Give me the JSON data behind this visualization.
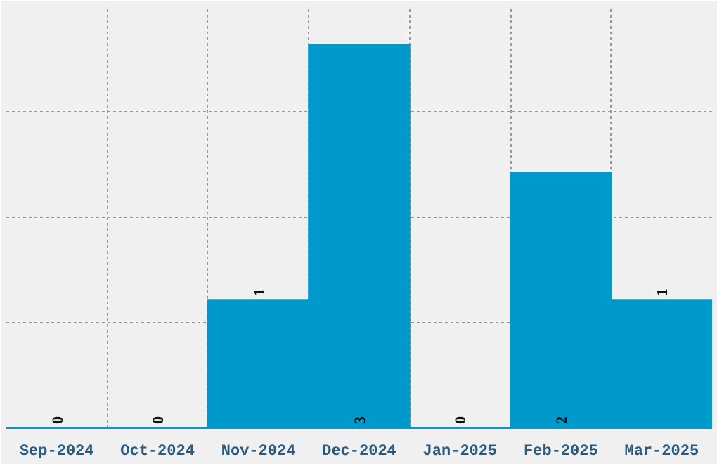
{
  "chart_data": {
    "type": "bar",
    "categories": [
      "Sep-2024",
      "Oct-2024",
      "Nov-2024",
      "Dec-2024",
      "Jan-2025",
      "Feb-2025",
      "Mar-2025"
    ],
    "values": [
      0,
      0,
      1,
      3,
      0,
      2,
      1
    ],
    "color": "#0099cc",
    "ylim": [
      0,
      3.3
    ],
    "yticks": [
      {
        "value": 0.825,
        "label": null
      },
      {
        "value": 1.65,
        "label": null
      },
      {
        "value": 2.475,
        "label": null
      }
    ],
    "tick_labels": "x",
    "grid": true,
    "data_labels": true
  }
}
